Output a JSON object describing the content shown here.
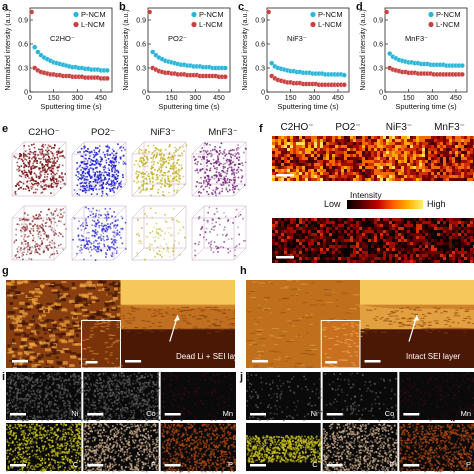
{
  "panels": {
    "a": "a",
    "b": "b",
    "c": "c",
    "d": "d",
    "e": "e",
    "f": "f",
    "g": "g",
    "h": "h",
    "i": "i",
    "j": "j"
  },
  "chart_data": [
    {
      "type": "scatter",
      "panel": "a",
      "annotation": "C2HO⁻",
      "xlabel": "Sputtering time (s)",
      "ylabel": "Normalized intensity (a.u.)",
      "xlim": [
        0,
        520
      ],
      "ylim": [
        0,
        1.05
      ],
      "xticks": [
        0,
        150,
        300,
        450
      ],
      "yticks": [
        0,
        0.3,
        0.6,
        0.9
      ],
      "legend_position": "top-right",
      "series": [
        {
          "name": "P-NCM",
          "color": "#29b6d8",
          "x": [
            10,
            30,
            50,
            70,
            90,
            110,
            130,
            150,
            170,
            190,
            210,
            230,
            250,
            270,
            290,
            310,
            330,
            350,
            370,
            390,
            410,
            430,
            450,
            470,
            490
          ],
          "y": [
            1.0,
            0.56,
            0.5,
            0.46,
            0.43,
            0.41,
            0.39,
            0.37,
            0.36,
            0.35,
            0.34,
            0.33,
            0.32,
            0.31,
            0.31,
            0.3,
            0.3,
            0.29,
            0.29,
            0.28,
            0.28,
            0.28,
            0.27,
            0.27,
            0.27
          ]
        },
        {
          "name": "L-NCM",
          "color": "#c9403f",
          "x": [
            10,
            30,
            50,
            70,
            90,
            110,
            130,
            150,
            170,
            190,
            210,
            230,
            250,
            270,
            290,
            310,
            330,
            350,
            370,
            390,
            410,
            430,
            450,
            470,
            490
          ],
          "y": [
            1.0,
            0.3,
            0.27,
            0.25,
            0.24,
            0.23,
            0.22,
            0.22,
            0.21,
            0.21,
            0.2,
            0.2,
            0.2,
            0.19,
            0.19,
            0.19,
            0.19,
            0.18,
            0.18,
            0.18,
            0.18,
            0.18,
            0.17,
            0.17,
            0.17
          ]
        }
      ]
    },
    {
      "type": "scatter",
      "panel": "b",
      "annotation": "PO2⁻",
      "xlabel": "Sputtering time (s)",
      "ylabel": "Normalized intensity (a.u.)",
      "xlim": [
        0,
        520
      ],
      "ylim": [
        0,
        1.05
      ],
      "xticks": [
        0,
        150,
        300,
        450
      ],
      "yticks": [
        0,
        0.3,
        0.6,
        0.9
      ],
      "legend_position": "top-right",
      "series": [
        {
          "name": "P-NCM",
          "color": "#29b6d8",
          "x": [
            10,
            30,
            50,
            70,
            90,
            110,
            130,
            150,
            170,
            190,
            210,
            230,
            250,
            270,
            290,
            310,
            330,
            350,
            370,
            390,
            410,
            430,
            450,
            470,
            490
          ],
          "y": [
            1.0,
            0.5,
            0.46,
            0.43,
            0.41,
            0.39,
            0.38,
            0.37,
            0.36,
            0.35,
            0.34,
            0.34,
            0.33,
            0.33,
            0.32,
            0.32,
            0.32,
            0.31,
            0.31,
            0.31,
            0.3,
            0.3,
            0.3,
            0.3,
            0.3
          ]
        },
        {
          "name": "L-NCM",
          "color": "#c9403f",
          "x": [
            10,
            30,
            50,
            70,
            90,
            110,
            130,
            150,
            170,
            190,
            210,
            230,
            250,
            270,
            290,
            310,
            330,
            350,
            370,
            390,
            410,
            430,
            450,
            470,
            490
          ],
          "y": [
            1.0,
            0.3,
            0.28,
            0.26,
            0.25,
            0.24,
            0.24,
            0.23,
            0.23,
            0.22,
            0.22,
            0.22,
            0.21,
            0.21,
            0.21,
            0.21,
            0.2,
            0.2,
            0.2,
            0.2,
            0.2,
            0.2,
            0.19,
            0.19,
            0.19
          ]
        }
      ]
    },
    {
      "type": "scatter",
      "panel": "c",
      "annotation": "NiF3⁻",
      "xlabel": "Sputtering time (s)",
      "ylabel": "Normalized intensity (a.u.)",
      "xlim": [
        0,
        520
      ],
      "ylim": [
        0,
        1.05
      ],
      "xticks": [
        0,
        150,
        300,
        450
      ],
      "yticks": [
        0,
        0.3,
        0.6,
        0.9
      ],
      "legend_position": "top-right",
      "series": [
        {
          "name": "P-NCM",
          "color": "#29b6d8",
          "x": [
            10,
            30,
            50,
            70,
            90,
            110,
            130,
            150,
            170,
            190,
            210,
            230,
            250,
            270,
            290,
            310,
            330,
            350,
            370,
            390,
            410,
            430,
            450,
            470,
            490
          ],
          "y": [
            1.0,
            0.36,
            0.32,
            0.3,
            0.29,
            0.28,
            0.27,
            0.26,
            0.26,
            0.25,
            0.25,
            0.24,
            0.24,
            0.24,
            0.23,
            0.23,
            0.23,
            0.23,
            0.22,
            0.22,
            0.22,
            0.22,
            0.22,
            0.22,
            0.21
          ]
        },
        {
          "name": "L-NCM",
          "color": "#c9403f",
          "x": [
            10,
            30,
            50,
            70,
            90,
            110,
            130,
            150,
            170,
            190,
            210,
            230,
            250,
            270,
            290,
            310,
            330,
            350,
            370,
            390,
            410,
            430,
            450,
            470,
            490
          ],
          "y": [
            1.0,
            0.2,
            0.17,
            0.15,
            0.14,
            0.13,
            0.12,
            0.12,
            0.11,
            0.11,
            0.11,
            0.1,
            0.1,
            0.1,
            0.1,
            0.1,
            0.09,
            0.09,
            0.09,
            0.09,
            0.09,
            0.09,
            0.09,
            0.09,
            0.09
          ]
        }
      ]
    },
    {
      "type": "scatter",
      "panel": "d",
      "annotation": "MnF3⁻",
      "xlabel": "Sputtering time (s)",
      "ylabel": "Normalized intensity (a.u.)",
      "xlim": [
        0,
        520
      ],
      "ylim": [
        0,
        1.05
      ],
      "xticks": [
        0,
        150,
        300,
        450
      ],
      "yticks": [
        0,
        0.3,
        0.6,
        0.9
      ],
      "legend_position": "top-right",
      "series": [
        {
          "name": "P-NCM",
          "color": "#29b6d8",
          "x": [
            10,
            30,
            50,
            70,
            90,
            110,
            130,
            150,
            170,
            190,
            210,
            230,
            250,
            270,
            290,
            310,
            330,
            350,
            370,
            390,
            410,
            430,
            450,
            470,
            490
          ],
          "y": [
            1.0,
            0.48,
            0.44,
            0.42,
            0.4,
            0.39,
            0.38,
            0.37,
            0.37,
            0.36,
            0.36,
            0.35,
            0.35,
            0.35,
            0.34,
            0.34,
            0.34,
            0.34,
            0.34,
            0.33,
            0.33,
            0.33,
            0.33,
            0.33,
            0.33
          ]
        },
        {
          "name": "L-NCM",
          "color": "#c9403f",
          "x": [
            10,
            30,
            50,
            70,
            90,
            110,
            130,
            150,
            170,
            190,
            210,
            230,
            250,
            270,
            290,
            310,
            330,
            350,
            370,
            390,
            410,
            430,
            450,
            470,
            490
          ],
          "y": [
            1.0,
            0.3,
            0.28,
            0.27,
            0.26,
            0.25,
            0.25,
            0.24,
            0.24,
            0.24,
            0.23,
            0.23,
            0.23,
            0.23,
            0.23,
            0.22,
            0.22,
            0.22,
            0.22,
            0.22,
            0.22,
            0.22,
            0.22,
            0.22,
            0.22
          ]
        }
      ]
    }
  ],
  "panel_e": {
    "ion_labels": [
      "C2HO⁻",
      "PO2⁻",
      "NiF3⁻",
      "MnF3⁻"
    ],
    "colors": [
      "#7a1414",
      "#1a1ad0",
      "#c2b020",
      "#7a2a80"
    ]
  },
  "panel_f": {
    "ion_labels": [
      "C2HO⁻",
      "PO2⁻",
      "NiF3⁻",
      "MnF3⁻"
    ],
    "colorbar": {
      "title": "Intensity",
      "low": "Low",
      "high": "High"
    }
  },
  "panel_g": {
    "annotation": "Dead Li + SEI layer"
  },
  "panel_h": {
    "annotation": "Intact SEI layer"
  },
  "panel_i": {
    "labels": [
      "Ni",
      "Co",
      "Mn",
      "C",
      "F",
      "P"
    ]
  },
  "panel_j": {
    "labels": [
      "Ni",
      "Co",
      "Mn",
      "C",
      "F",
      "P"
    ]
  }
}
